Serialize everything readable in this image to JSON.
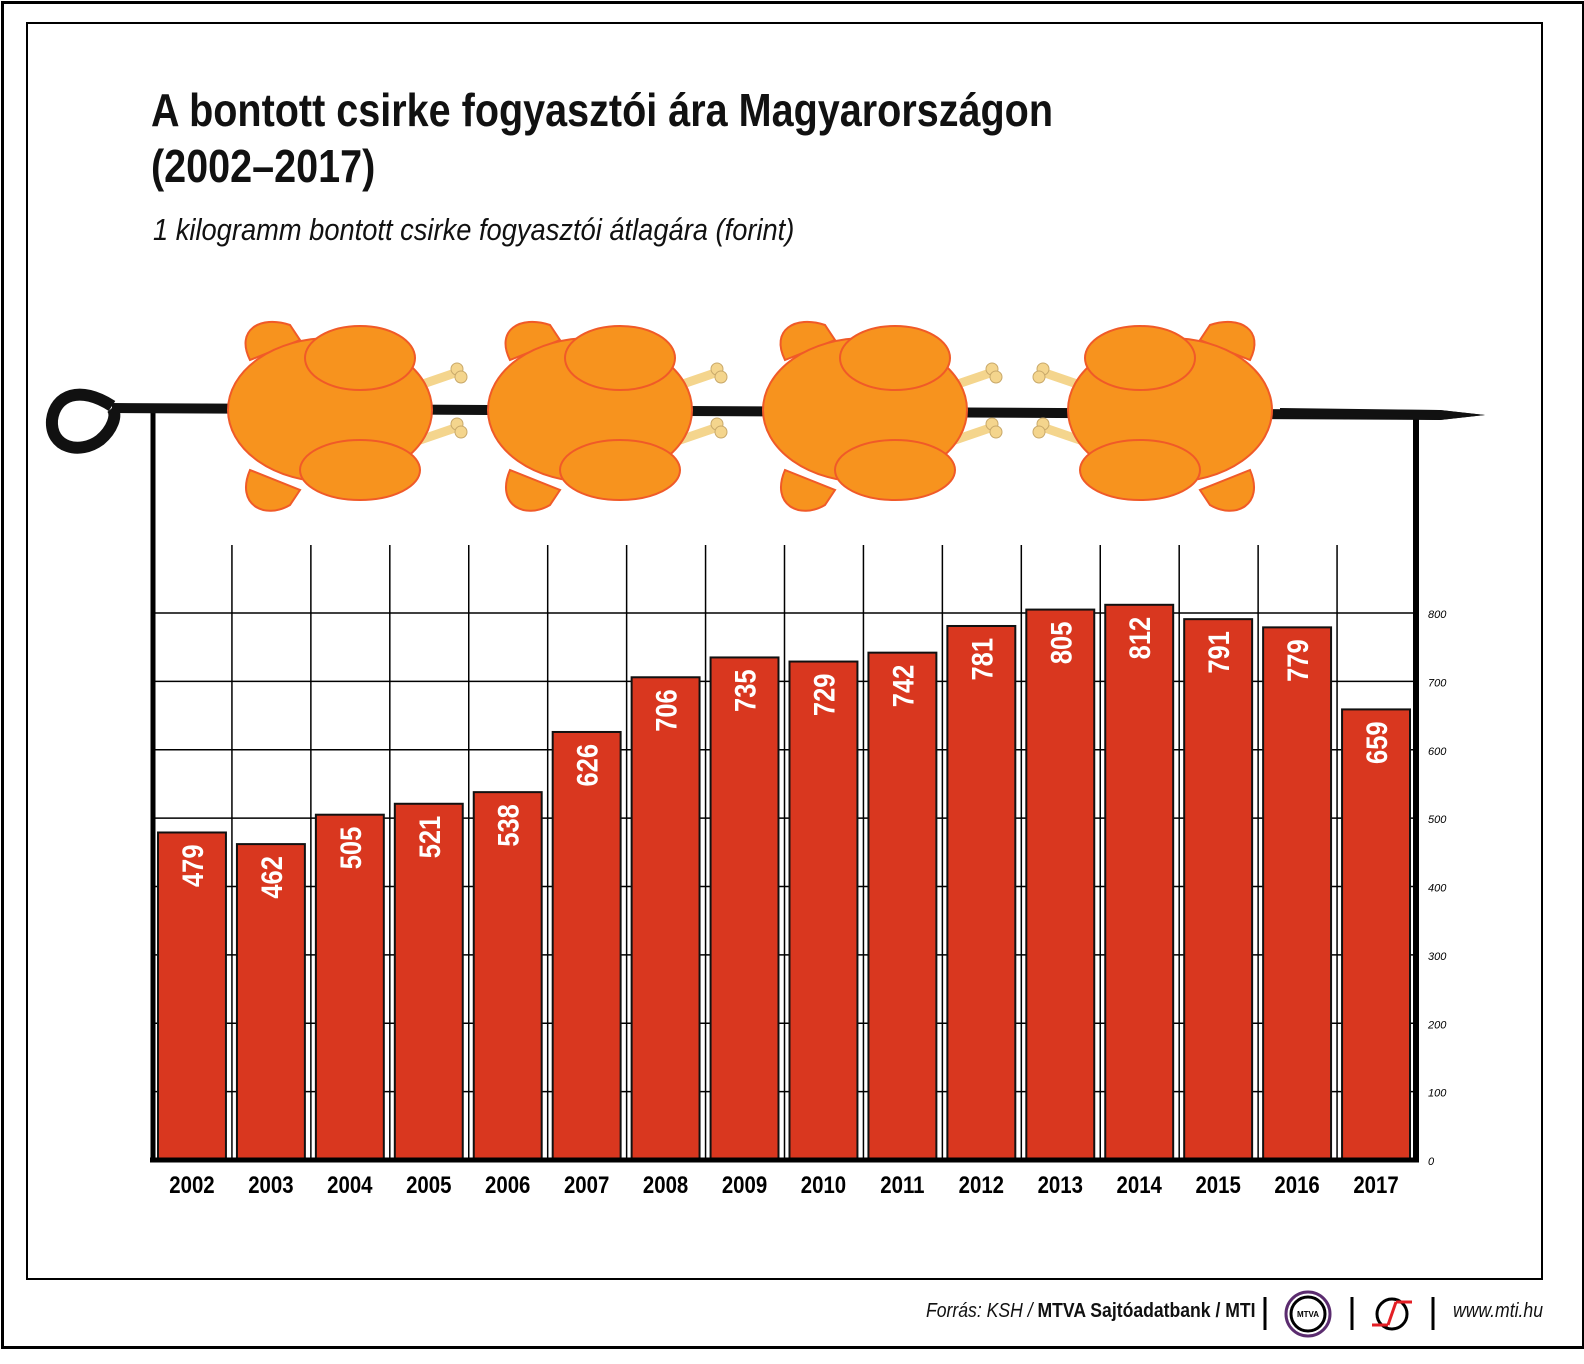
{
  "title_line1": "A bontott csirke fogyasztói ára Magyarországon",
  "title_line2": "(2002–2017)",
  "subtitle": "1 kilogramm bontott csirke fogyasztói átlagára (forint)",
  "colors": {
    "bar": "#d9371f",
    "chicken": "#f7931e",
    "chicken_outline": "#f05a28",
    "bone": "#f4d58d"
  },
  "chart_data": {
    "type": "bar",
    "title": "A bontott csirke fogyasztói ára Magyarországon (2002–2017)",
    "ylabel": "1 kilogramm bontott csirke fogyasztói átlagára (forint)",
    "categories": [
      "2002",
      "2003",
      "2004",
      "2005",
      "2006",
      "2007",
      "2008",
      "2009",
      "2010",
      "2011",
      "2012",
      "2013",
      "2014",
      "2015",
      "2016",
      "2017"
    ],
    "values": [
      479,
      462,
      505,
      521,
      538,
      626,
      706,
      735,
      729,
      742,
      781,
      805,
      812,
      791,
      779,
      659
    ],
    "ylim": [
      0,
      800
    ],
    "yticks": [
      "0",
      "100",
      "200",
      "300",
      "400",
      "500",
      "600",
      "700",
      "800"
    ],
    "y_axis_position": "right",
    "grid": true
  },
  "footer": {
    "source_prefix": "Forrás: KSH / ",
    "source_bold": "MTVA Sajtóadatbank / MTI",
    "logo1": "MTVA",
    "url": "www.mti.hu"
  }
}
